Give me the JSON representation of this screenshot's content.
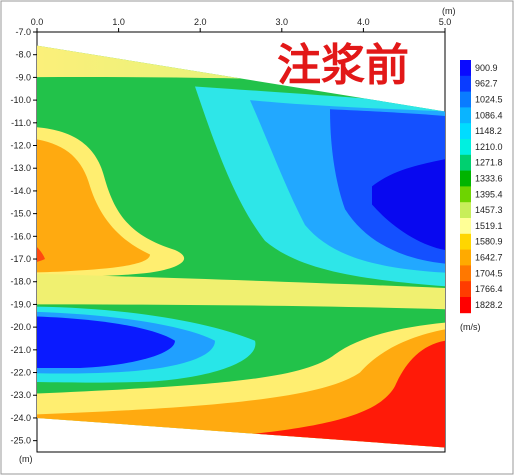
{
  "chart_data": {
    "type": "heatmap",
    "title": "注浆前",
    "x_unit": "(m)",
    "y_unit": "(m)",
    "colorbar_unit": "(m/s)",
    "xlim": [
      0.0,
      5.0
    ],
    "ylim": [
      -25.5,
      -7.0
    ],
    "x_ticks": [
      "0.0",
      "1.0",
      "2.0",
      "3.0",
      "4.0",
      "5.0"
    ],
    "y_ticks": [
      "-7.0",
      "-8.0",
      "-9.0",
      "-10.0",
      "-11.0",
      "-12.0",
      "-13.0",
      "-14.0",
      "-15.0",
      "-16.0",
      "-17.0",
      "-18.0",
      "-19.0",
      "-20.0",
      "-21.0",
      "-22.0",
      "-23.0",
      "-24.0",
      "-25.0"
    ],
    "colorbar_levels": [
      "900.9",
      "962.7",
      "1024.5",
      "1086.4",
      "1148.2",
      "1210.0",
      "1271.8",
      "1333.6",
      "1395.4",
      "1457.3",
      "1519.1",
      "1580.9",
      "1642.7",
      "1704.5",
      "1766.4",
      "1828.2"
    ],
    "colorbar_colors": [
      "#0a0aff",
      "#0a3cff",
      "#0a7cff",
      "#0ab4ff",
      "#00dcff",
      "#00f0e0",
      "#00d070",
      "#00b400",
      "#6ed400",
      "#c8ee5a",
      "#ffff96",
      "#ffd600",
      "#ffaa00",
      "#ff7800",
      "#ff3c00",
      "#ff0000"
    ],
    "section_bounds": {
      "left": {
        "x": 0.0,
        "top": -7.6,
        "bottom": -24.0
      },
      "right": {
        "x": 5.0,
        "top": -10.5,
        "bottom": -25.3
      }
    },
    "bands": [
      {
        "label": "upper-left low-velocity zone",
        "value_range": [
          1519.1,
          1828.2
        ]
      },
      {
        "label": "upper-right high-velocity zone",
        "value_range": [
          900.9,
          1024.5
        ]
      },
      {
        "label": "middle low-velocity zone",
        "value_range": [
          1642.7,
          1828.2
        ]
      },
      {
        "label": "lower-left high-velocity zone",
        "value_range": [
          900.9,
          1086.4
        ]
      },
      {
        "label": "lower-right low-velocity zone",
        "value_range": [
          1642.7,
          1828.2
        ]
      }
    ]
  }
}
